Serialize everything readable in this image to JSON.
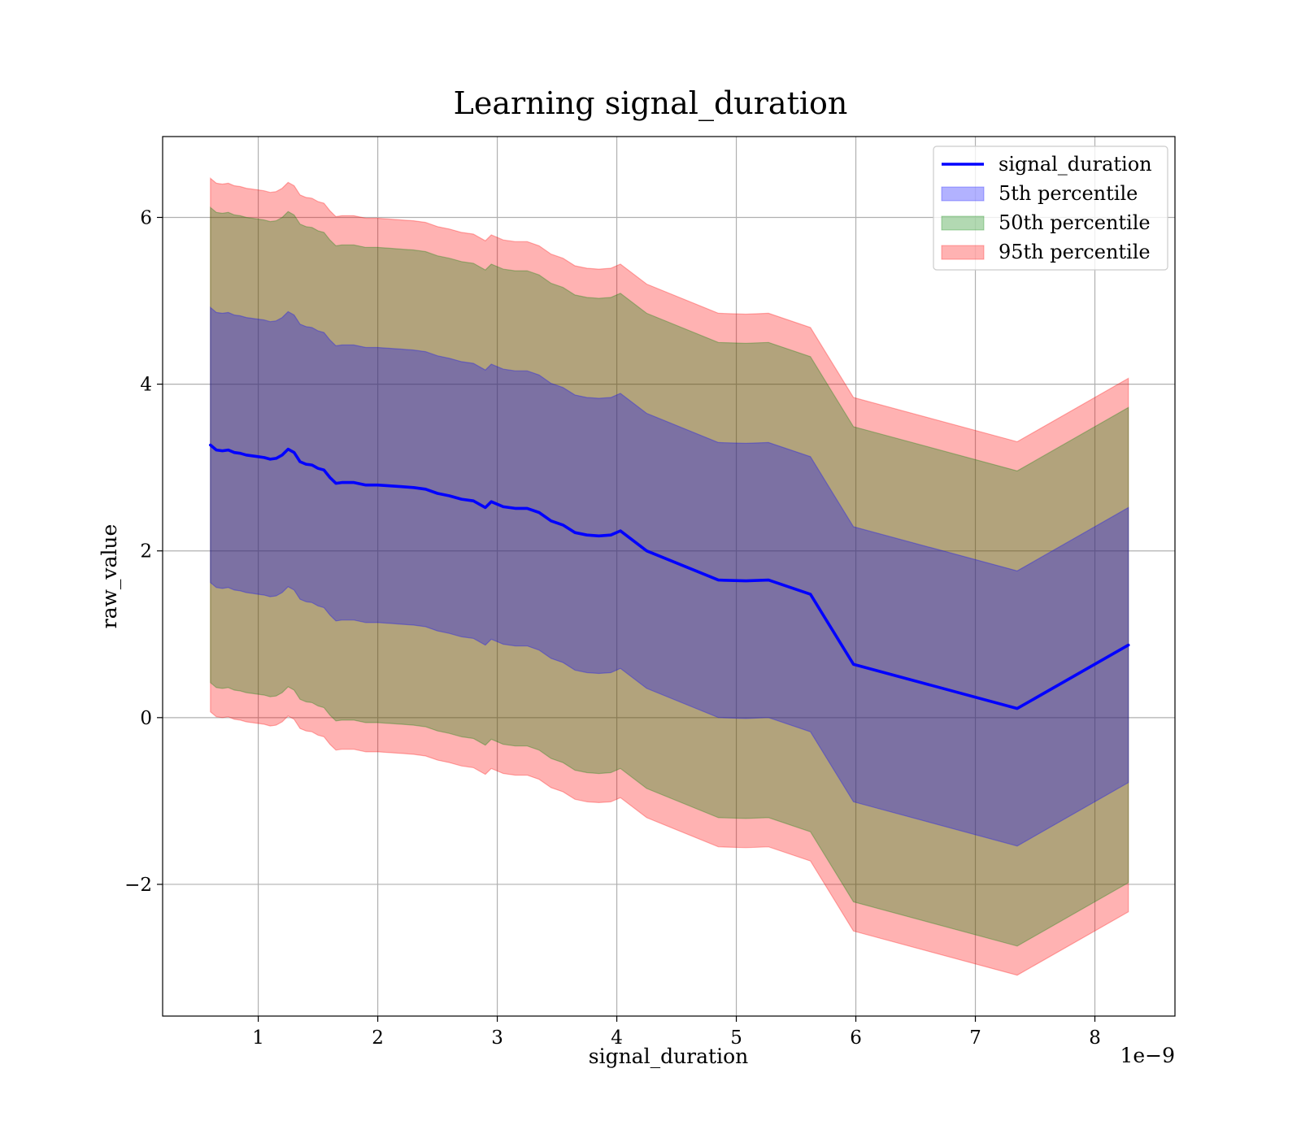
{
  "chart_data": {
    "type": "line",
    "title": "Learning signal_duration",
    "xlabel": "signal_duration",
    "ylabel": "raw_value",
    "x_offset_label": "1e−9",
    "xlim": [
      0.2,
      8.67
    ],
    "ylim": [
      -3.58,
      6.97
    ],
    "x_ticks": [
      1,
      2,
      3,
      4,
      5,
      6,
      7,
      8
    ],
    "x_tick_labels": [
      "1",
      "2",
      "3",
      "4",
      "5",
      "6",
      "7",
      "8"
    ],
    "y_ticks": [
      -2,
      0,
      2,
      4,
      6
    ],
    "y_tick_labels": [
      "−2",
      "0",
      "2",
      "4",
      "6"
    ],
    "grid": true,
    "legend_position": "top-right",
    "colors": {
      "line": "#0000ff",
      "band_5": "#0000ff",
      "band_50": "#008000",
      "band_95": "#ff0000"
    },
    "x": [
      0.6,
      0.65,
      0.7,
      0.75,
      0.8,
      0.85,
      0.9,
      0.95,
      1.0,
      1.05,
      1.1,
      1.15,
      1.2,
      1.25,
      1.3,
      1.35,
      1.4,
      1.45,
      1.5,
      1.55,
      1.6,
      1.65,
      1.7,
      1.8,
      1.9,
      2.0,
      2.1,
      2.2,
      2.3,
      2.4,
      2.5,
      2.6,
      2.7,
      2.8,
      2.9,
      2.95,
      3.0,
      3.05,
      3.15,
      3.25,
      3.35,
      3.45,
      3.55,
      3.65,
      3.75,
      3.85,
      3.95,
      4.03,
      4.25,
      4.85,
      5.08,
      5.27,
      5.62,
      5.98,
      7.35,
      8.28
    ],
    "series": [
      {
        "name": "signal_duration",
        "values": [
          3.27,
          3.21,
          3.2,
          3.21,
          3.18,
          3.17,
          3.15,
          3.14,
          3.13,
          3.12,
          3.1,
          3.11,
          3.15,
          3.22,
          3.18,
          3.07,
          3.04,
          3.03,
          2.99,
          2.97,
          2.88,
          2.81,
          2.82,
          2.82,
          2.79,
          2.79,
          2.78,
          2.77,
          2.76,
          2.74,
          2.69,
          2.66,
          2.62,
          2.6,
          2.52,
          2.59,
          2.56,
          2.53,
          2.51,
          2.51,
          2.46,
          2.36,
          2.31,
          2.22,
          2.19,
          2.18,
          2.19,
          2.24,
          2.0,
          1.65,
          1.64,
          1.65,
          1.48,
          0.64,
          0.11,
          0.87
        ]
      },
      {
        "name": "5th percentile",
        "values_lower": [
          1.62,
          1.56,
          1.55,
          1.56,
          1.53,
          1.52,
          1.5,
          1.49,
          1.48,
          1.47,
          1.45,
          1.46,
          1.5,
          1.57,
          1.53,
          1.42,
          1.39,
          1.38,
          1.34,
          1.32,
          1.23,
          1.16,
          1.17,
          1.17,
          1.14,
          1.14,
          1.13,
          1.12,
          1.11,
          1.09,
          1.04,
          1.01,
          0.97,
          0.95,
          0.87,
          0.94,
          0.91,
          0.88,
          0.86,
          0.86,
          0.81,
          0.71,
          0.66,
          0.57,
          0.54,
          0.53,
          0.54,
          0.59,
          0.35,
          0.0,
          -0.01,
          0.0,
          -0.17,
          -1.01,
          -1.54,
          -0.78
        ],
        "values_upper": [
          4.92,
          4.86,
          4.85,
          4.86,
          4.83,
          4.82,
          4.8,
          4.79,
          4.78,
          4.77,
          4.75,
          4.76,
          4.8,
          4.87,
          4.83,
          4.72,
          4.69,
          4.68,
          4.64,
          4.62,
          4.53,
          4.46,
          4.47,
          4.47,
          4.44,
          4.44,
          4.43,
          4.42,
          4.41,
          4.39,
          4.34,
          4.31,
          4.27,
          4.25,
          4.17,
          4.24,
          4.21,
          4.18,
          4.16,
          4.16,
          4.11,
          4.01,
          3.96,
          3.87,
          3.84,
          3.83,
          3.84,
          3.89,
          3.65,
          3.3,
          3.29,
          3.3,
          3.13,
          2.29,
          1.76,
          2.52
        ]
      },
      {
        "name": "50th percentile",
        "values_lower": [
          0.42,
          0.36,
          0.35,
          0.36,
          0.33,
          0.32,
          0.3,
          0.29,
          0.28,
          0.27,
          0.25,
          0.26,
          0.3,
          0.37,
          0.33,
          0.22,
          0.19,
          0.18,
          0.14,
          0.12,
          0.03,
          -0.04,
          -0.03,
          -0.03,
          -0.06,
          -0.06,
          -0.07,
          -0.08,
          -0.09,
          -0.11,
          -0.16,
          -0.19,
          -0.23,
          -0.25,
          -0.33,
          -0.26,
          -0.29,
          -0.32,
          -0.34,
          -0.34,
          -0.39,
          -0.49,
          -0.54,
          -0.63,
          -0.66,
          -0.67,
          -0.66,
          -0.61,
          -0.85,
          -1.2,
          -1.21,
          -1.2,
          -1.37,
          -2.21,
          -2.74,
          -1.98
        ],
        "values_upper": [
          6.12,
          6.06,
          6.05,
          6.06,
          6.03,
          6.02,
          6.0,
          5.99,
          5.98,
          5.97,
          5.95,
          5.96,
          6.0,
          6.07,
          6.03,
          5.92,
          5.89,
          5.88,
          5.84,
          5.82,
          5.73,
          5.66,
          5.67,
          5.67,
          5.64,
          5.64,
          5.63,
          5.62,
          5.61,
          5.59,
          5.54,
          5.51,
          5.47,
          5.45,
          5.37,
          5.44,
          5.41,
          5.38,
          5.36,
          5.36,
          5.31,
          5.21,
          5.16,
          5.07,
          5.04,
          5.03,
          5.04,
          5.09,
          4.85,
          4.5,
          4.49,
          4.5,
          4.33,
          3.49,
          2.96,
          3.72
        ]
      },
      {
        "name": "95th percentile",
        "values_lower": [
          0.07,
          0.01,
          0.0,
          0.01,
          -0.02,
          -0.03,
          -0.05,
          -0.06,
          -0.07,
          -0.08,
          -0.1,
          -0.09,
          -0.05,
          0.02,
          -0.02,
          -0.13,
          -0.16,
          -0.17,
          -0.21,
          -0.23,
          -0.32,
          -0.39,
          -0.38,
          -0.38,
          -0.41,
          -0.41,
          -0.42,
          -0.43,
          -0.44,
          -0.46,
          -0.51,
          -0.54,
          -0.58,
          -0.6,
          -0.68,
          -0.61,
          -0.64,
          -0.67,
          -0.69,
          -0.69,
          -0.74,
          -0.84,
          -0.89,
          -0.98,
          -1.01,
          -1.02,
          -1.01,
          -0.96,
          -1.2,
          -1.55,
          -1.56,
          -1.55,
          -1.72,
          -2.56,
          -3.09,
          -2.33
        ],
        "values_upper": [
          6.47,
          6.41,
          6.4,
          6.41,
          6.38,
          6.37,
          6.35,
          6.34,
          6.33,
          6.32,
          6.3,
          6.31,
          6.35,
          6.42,
          6.38,
          6.27,
          6.24,
          6.23,
          6.19,
          6.17,
          6.08,
          6.01,
          6.02,
          6.02,
          5.99,
          5.99,
          5.98,
          5.97,
          5.96,
          5.94,
          5.89,
          5.86,
          5.82,
          5.8,
          5.72,
          5.79,
          5.76,
          5.73,
          5.71,
          5.71,
          5.66,
          5.56,
          5.51,
          5.42,
          5.39,
          5.38,
          5.39,
          5.44,
          5.2,
          4.85,
          4.84,
          4.85,
          4.68,
          3.84,
          3.31,
          4.07
        ]
      }
    ]
  }
}
